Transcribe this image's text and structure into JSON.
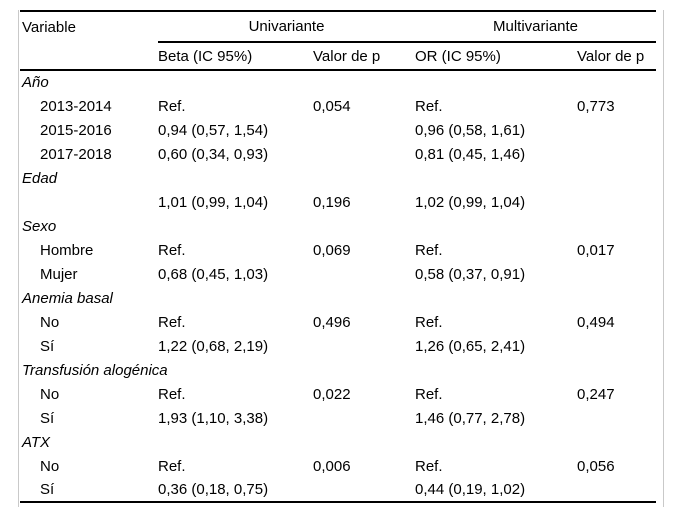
{
  "colors": {
    "background": "#ffffff",
    "text": "#000000",
    "rule": "#000000",
    "faint_edge": "#c9c9c9"
  },
  "table": {
    "header": {
      "variable_label": "Variable",
      "group_univariate": "Univariante",
      "group_multivariate": "Multivariante",
      "col_beta": "Beta (IC 95%)",
      "col_p_uni": "Valor de p",
      "col_or": "OR (IC 95%)",
      "col_p_multi": "Valor de p"
    },
    "sections": [
      {
        "label": "Año",
        "rows": [
          {
            "name": "2013-2014",
            "beta": "Ref.",
            "p_uni": "0,054",
            "or": "Ref.",
            "p_multi": "0,773"
          },
          {
            "name": "2015-2016",
            "beta": "0,94 (0,57, 1,54)",
            "p_uni": "",
            "or": "0,96 (0,58, 1,61)",
            "p_multi": ""
          },
          {
            "name": "2017-2018",
            "beta": "0,60 (0,34, 0,93)",
            "p_uni": "",
            "or": "0,81 (0,45, 1,46)",
            "p_multi": ""
          }
        ]
      },
      {
        "label": "Edad",
        "rows": [
          {
            "name": "",
            "beta": "1,01 (0,99, 1,04)",
            "p_uni": "0,196",
            "or": "1,02 (0,99, 1,04)",
            "p_multi": ""
          }
        ]
      },
      {
        "label": "Sexo",
        "rows": [
          {
            "name": "Hombre",
            "beta": "Ref.",
            "p_uni": "0,069",
            "or": "Ref.",
            "p_multi": "0,017"
          },
          {
            "name": "Mujer",
            "beta": "0,68 (0,45, 1,03)",
            "p_uni": "",
            "or": "0,58 (0,37, 0,91)",
            "p_multi": ""
          }
        ]
      },
      {
        "label": "Anemia basal",
        "rows": [
          {
            "name": "No",
            "beta": "Ref.",
            "p_uni": "0,496",
            "or": "Ref.",
            "p_multi": "0,494"
          },
          {
            "name": "Sí",
            "beta": "1,22 (0,68, 2,19)",
            "p_uni": "",
            "or": "1,26 (0,65, 2,41)",
            "p_multi": ""
          }
        ]
      },
      {
        "label": "Transfusión alogénica",
        "rows": [
          {
            "name": "No",
            "beta": "Ref.",
            "p_uni": "0,022",
            "or": "Ref.",
            "p_multi": "0,247"
          },
          {
            "name": "Sí",
            "beta": "1,93 (1,10, 3,38)",
            "p_uni": "",
            "or": "1,46 (0,77, 2,78)",
            "p_multi": ""
          }
        ]
      },
      {
        "label": "ATX",
        "rows": [
          {
            "name": "No",
            "beta": "Ref.",
            "p_uni": "0,006",
            "or": "Ref.",
            "p_multi": "0,056"
          },
          {
            "name": "Sí",
            "beta": "0,36 (0,18, 0,75)",
            "p_uni": "",
            "or": "0,44 (0,19, 1,02)",
            "p_multi": ""
          }
        ]
      }
    ]
  }
}
